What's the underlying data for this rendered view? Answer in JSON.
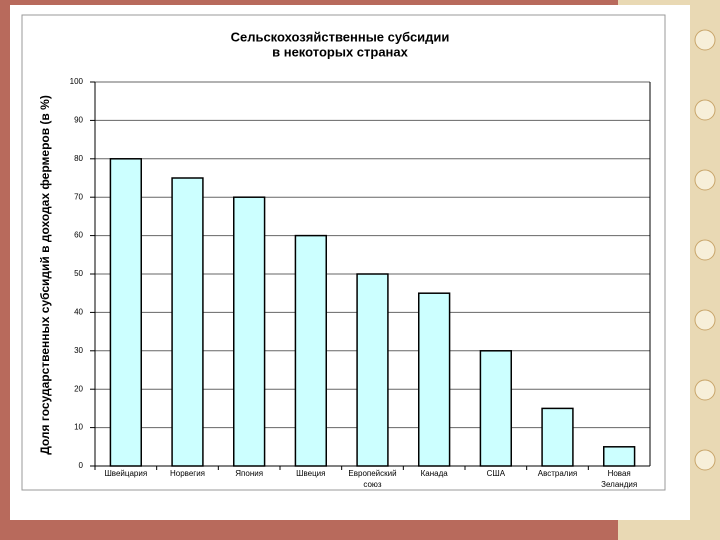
{
  "chart_data": {
    "type": "bar",
    "title": [
      "Сельскохозяйственные субсидии",
      "в некоторых странах"
    ],
    "y_label": "Доля государственных субсидий в доходах фермеров (в %)",
    "categories": [
      "Швейцария",
      "Норвегия",
      "Япония",
      "Швеция",
      "Европейский союз",
      "Канада",
      "США",
      "Австралия",
      "Новая Зеландия"
    ],
    "values": [
      80,
      75,
      70,
      60,
      50,
      45,
      30,
      15,
      5
    ],
    "color": "#ccffff",
    "ylim": [
      0,
      100
    ],
    "yticks": [
      0,
      10,
      20,
      30,
      40,
      50,
      60,
      70,
      80,
      90,
      100
    ],
    "grid": true
  }
}
